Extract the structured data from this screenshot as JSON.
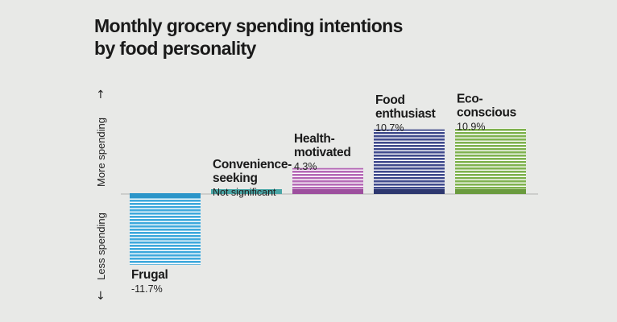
{
  "chart_data": {
    "type": "bar",
    "title": "Monthly grocery spending intentions",
    "subtitle": "by food personality",
    "up_label": "More spending",
    "down_label": "Less spending",
    "up_arrow": "↑",
    "down_arrow": "↓",
    "ylim": [
      -11.7,
      10.9
    ],
    "series": [
      {
        "name": "Frugal",
        "value": -11.7,
        "display": "-11.7%",
        "color": "#3ea9dc",
        "dark": "#2b95c9"
      },
      {
        "name": "Convenience-seeking",
        "value": 0,
        "display": "Not significant",
        "color": "#5ab9b9",
        "dark": "#4aa6a6"
      },
      {
        "name": "Health-motivated",
        "value": 4.3,
        "display": "4.3%",
        "color": "#b569b6",
        "dark": "#9d4f9e"
      },
      {
        "name": "Food enthusiast",
        "value": 10.7,
        "display": "10.7%",
        "color": "#3f4a8c",
        "dark": "#2d376f"
      },
      {
        "name": "Eco-conscious",
        "value": 10.9,
        "display": "10.9%",
        "color": "#7fb24f",
        "dark": "#6a9b3e"
      }
    ]
  }
}
